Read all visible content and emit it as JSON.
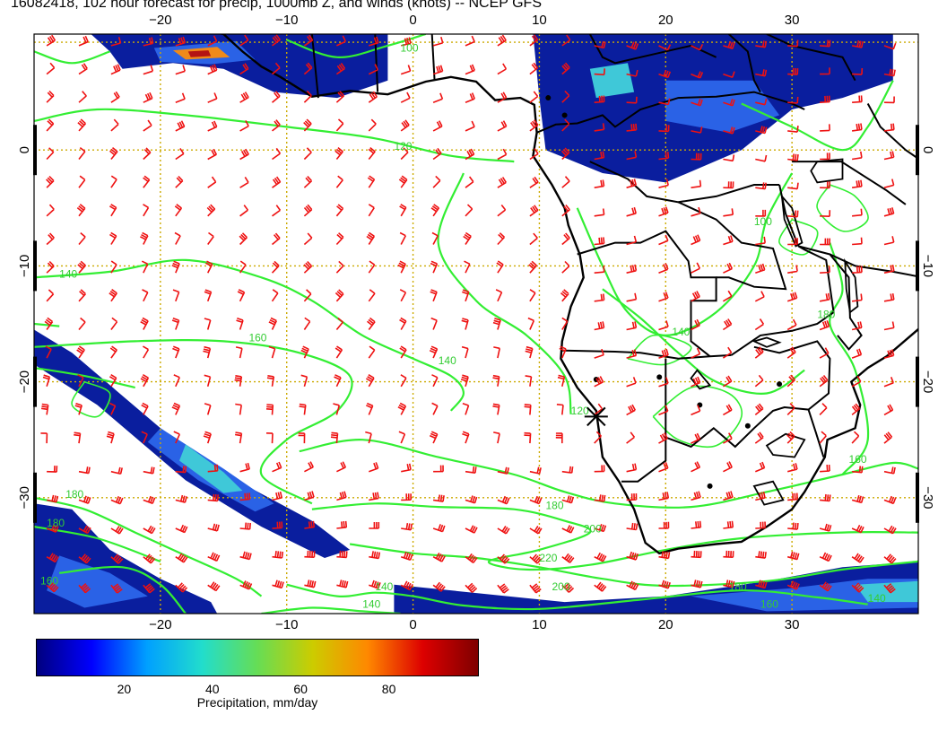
{
  "title": "16082418, 102 hour forecast for precip, 1000mb Z, and winds (knots) -- NCEP GFS",
  "map": {
    "lon_range": [
      -30,
      40
    ],
    "lat_range": [
      -40,
      10
    ],
    "lon_ticks": [
      {
        "value": -20,
        "label": "−20"
      },
      {
        "value": -10,
        "label": "−10"
      },
      {
        "value": 0,
        "label": "0"
      },
      {
        "value": 10,
        "label": "10"
      },
      {
        "value": 20,
        "label": "20"
      },
      {
        "value": 30,
        "label": "30"
      }
    ],
    "lat_ticks": [
      {
        "value": 0,
        "label": "0"
      },
      {
        "value": -10,
        "label": "−10"
      },
      {
        "value": -20,
        "label": "−20"
      },
      {
        "value": -30,
        "label": "−30"
      }
    ],
    "grid": true,
    "colors": {
      "contours": "#33ee33",
      "barbs": "#ee1111",
      "coast": "#000000",
      "grid": "#ccaa00"
    },
    "contour_labels": [
      {
        "text": "100",
        "lon": -1,
        "lat": 8.5
      },
      {
        "text": "120",
        "lon": -1.5,
        "lat": 0
      },
      {
        "text": "140",
        "lon": -28,
        "lat": -11
      },
      {
        "text": "160",
        "lon": -13,
        "lat": -16.5
      },
      {
        "text": "140",
        "lon": 2,
        "lat": -18.5
      },
      {
        "text": "120",
        "lon": 12.5,
        "lat": -22.8
      },
      {
        "text": "180",
        "lon": -27.5,
        "lat": -30
      },
      {
        "text": "180",
        "lon": -29,
        "lat": -32.5
      },
      {
        "text": "160",
        "lon": -29.5,
        "lat": -37.5
      },
      {
        "text": "180",
        "lon": 10.5,
        "lat": -31
      },
      {
        "text": "200",
        "lon": 13.5,
        "lat": -33
      },
      {
        "text": "220",
        "lon": 10,
        "lat": -35.5
      },
      {
        "text": "200",
        "lon": 11,
        "lat": -38
      },
      {
        "text": "140",
        "lon": -3,
        "lat": -38
      },
      {
        "text": "140",
        "lon": -4,
        "lat": -39.5
      },
      {
        "text": "180",
        "lon": 25,
        "lat": -38
      },
      {
        "text": "160",
        "lon": 27.5,
        "lat": -39.5
      },
      {
        "text": "140",
        "lon": 36,
        "lat": -39
      },
      {
        "text": "140",
        "lon": 20.5,
        "lat": -16
      },
      {
        "text": "100",
        "lon": 27,
        "lat": -6.5
      },
      {
        "text": "180",
        "lon": 32,
        "lat": -14.5
      },
      {
        "text": "160",
        "lon": 34.5,
        "lat": -27
      }
    ],
    "precip_regions": [
      {
        "name": "guinea-coast",
        "intensity": "high"
      },
      {
        "name": "central-africa",
        "intensity": "moderate"
      },
      {
        "name": "south-atlantic-band",
        "intensity": "moderate"
      },
      {
        "name": "southern-ocean-west",
        "intensity": "moderate"
      },
      {
        "name": "southern-ocean-east",
        "intensity": "moderate"
      }
    ],
    "marker": {
      "lon": 14.5,
      "lat": -23
    }
  },
  "colorbar": {
    "min": 0,
    "max": 100,
    "ticks": [
      {
        "value": 20,
        "label": "20"
      },
      {
        "value": 40,
        "label": "40"
      },
      {
        "value": 60,
        "label": "60"
      },
      {
        "value": 80,
        "label": "80"
      }
    ],
    "title": "Precipitation, mm/day",
    "colors": [
      "#00007f",
      "#0000ff",
      "#00a0ff",
      "#22ddcc",
      "#66dd55",
      "#cccc00",
      "#ff8800",
      "#dd0000",
      "#7f0000"
    ]
  }
}
